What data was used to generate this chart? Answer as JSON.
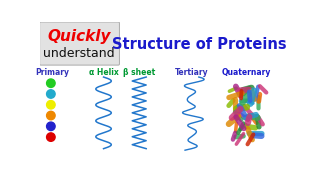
{
  "title_quickly": "Quickly",
  "title_understand": "understand",
  "title_main": "Structure of Proteins",
  "title_quickly_color": "#ee0000",
  "title_understand_color": "#111111",
  "title_main_color": "#1a1acc",
  "bg_box_color": "#e4e4e4",
  "labels": [
    "Primary",
    "α Helix",
    "β sheet",
    "Tertiary",
    "Quaternary"
  ],
  "label_colors": [
    "#3333bb",
    "#009933",
    "#009933",
    "#3333bb",
    "#1a1acc"
  ],
  "ball_colors": [
    "#22cc22",
    "#22aacc",
    "#eeee00",
    "#ee8800",
    "#2222cc",
    "#dd0000"
  ],
  "helix_color": "#2277cc",
  "sheet_color": "#2277cc",
  "tertiary_color": "#2277cc",
  "background_color": "#ffffff",
  "figwidth": 3.2,
  "figheight": 1.8,
  "dpi": 100
}
